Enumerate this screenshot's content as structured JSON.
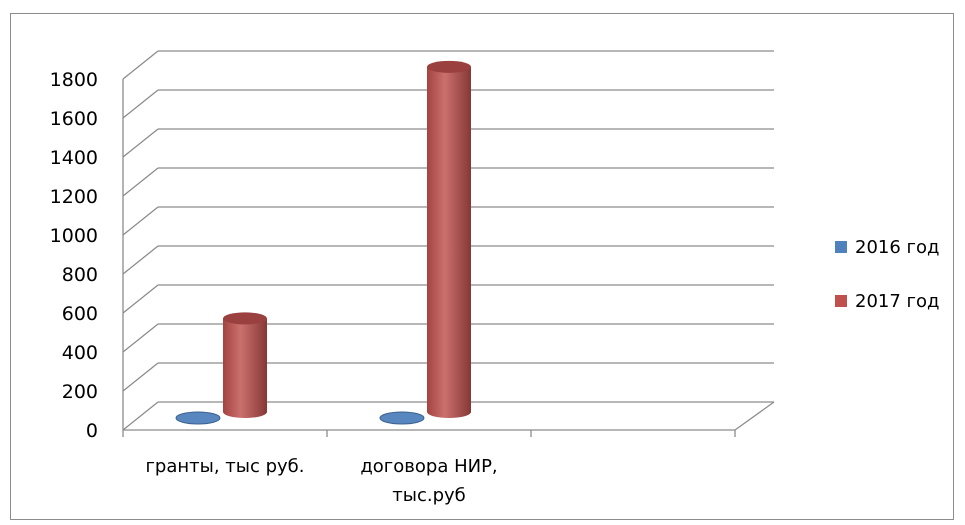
{
  "chart_data": {
    "type": "bar",
    "title": "",
    "xlabel": "",
    "ylabel": "",
    "categories": [
      [
        "гранты, тыс руб."
      ],
      [
        "договора НИР,",
        "тыс.руб"
      ]
    ],
    "series": [
      {
        "name": "2016 год",
        "values": [
          0,
          0
        ],
        "color": "#4f81bd"
      },
      {
        "name": "2017 год",
        "values": [
          480,
          1770
        ],
        "color": "#c0504d"
      }
    ],
    "ylim": [
      0,
      1800
    ],
    "yticks": [
      0,
      200,
      400,
      600,
      800,
      1000,
      1200,
      1400,
      1600,
      1800
    ],
    "grid": true,
    "legend_position": "right",
    "style": "3d-cylinder"
  }
}
